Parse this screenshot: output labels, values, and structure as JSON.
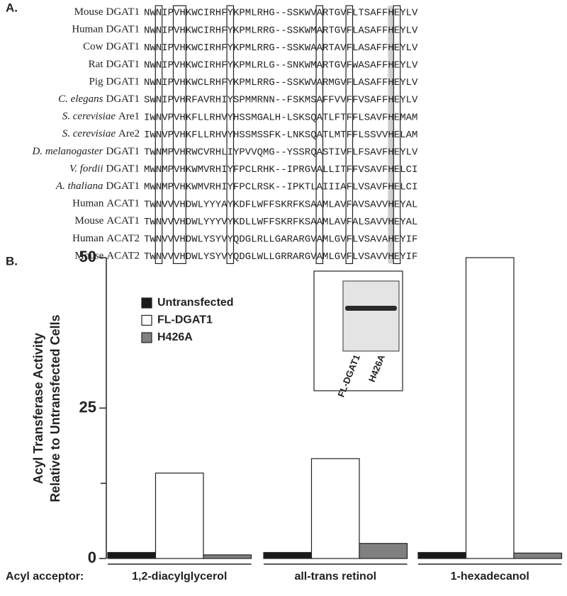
{
  "panel_labels": [
    "A.",
    "B."
  ],
  "panel_a": {
    "rows": [
      {
        "organism": "Mouse",
        "protein": "DGAT1",
        "italic": false,
        "sequence": "NWNIPVHKWCIRHFYKPMLRHG--SSKWVARTGVFLTSAFFHEYLV"
      },
      {
        "organism": "Human",
        "protein": "DGAT1",
        "italic": false,
        "sequence": "NWNIPVHKWCIRHFYKPMLRRG--SSKWMARTGVFLASAFFHEYLV"
      },
      {
        "organism": "Cow",
        "protein": "DGAT1",
        "italic": false,
        "sequence": "NWNIPVHKWCIRHFYKPMLRRG--SSKWAARTAVFLASAFFHEYLV"
      },
      {
        "organism": "Rat",
        "protein": "DGAT1",
        "italic": false,
        "sequence": "NWNIPVHKWCIRHFYKPMLRLG--SNKWMARTGVFWASAFFHEYLV"
      },
      {
        "organism": "Pig",
        "protein": "DGAT1",
        "italic": false,
        "sequence": "NWNIPVHKWCLRHFYKPMLRRG--SSKWVARMGVFLASAFFHEYLV"
      },
      {
        "organism": "C. elegans",
        "protein": "DGAT1",
        "italic": true,
        "sequence": "SWNIPVHRFAVRHIYSPMMRNN--FSKMSAFFVVFFVSAFFHEYLV"
      },
      {
        "organism": "S. cerevisiae",
        "protein": "Are1",
        "italic": true,
        "sequence": "IWNVPVHKFLLRHVYHSSMGALH-LSKSQATLFTFFLSAVFHEMAM"
      },
      {
        "organism": "S. cerevisiae",
        "protein": "Are2",
        "italic": true,
        "sequence": "IWNVPVHKFLLRHVYHSSMSSFK-LNKSQATLMTFFLSSVVHELAM"
      },
      {
        "organism": "D. melanogaster",
        "protein": "DGAT1",
        "italic": true,
        "sequence": "TWNMPVHRWCVRHLIYPVVQMG--YSSRQASTIVFLFSAVFHEYLV"
      },
      {
        "organism": "V. fordii",
        "protein": "DGAT1",
        "italic": true,
        "sequence": "MWNMPVHKWMVRHIYFPCLRHK--IPRGVALLITFFVSAVFHELCI"
      },
      {
        "organism": "A. thaliana",
        "protein": "DGAT1",
        "italic": true,
        "sequence": "MWNMPVHKWMVRHIYFPCLRSK--IPKTLAIIIAFLVSAVFHELCI"
      },
      {
        "organism": "Human",
        "protein": "ACAT1",
        "italic": false,
        "sequence": "TWNVVVHDWLYYYAYKDFLWFFSKRFKSAAMLAVFAVSAVVHEYAL"
      },
      {
        "organism": "Mouse",
        "protein": "ACAT1",
        "italic": false,
        "sequence": "TWNVVVHDWLYYYVYKDLLWFFSKRFKSAAMLAVFALSAVVHEYAL"
      },
      {
        "organism": "Human",
        "protein": "ACAT2",
        "italic": false,
        "sequence": "TWNVVVHDWLYSYVYQDGLRLLGARARGVAMLGVFLVSAVAHEYIF"
      },
      {
        "organism": "Mouse",
        "protein": "ACAT2",
        "italic": false,
        "sequence": "TWNVVVHDWLYSYVYQDGLWLLGRRARGVAMLGVFLVSAVVHEYIF"
      }
    ]
  },
  "chart_data": {
    "type": "bar",
    "y_label": [
      "Acyl Transferase Activity",
      "Relative to Untransfected Cells"
    ],
    "x_label": "Acyl acceptor:",
    "categories": [
      "1,2-diacylglycerol",
      "all-trans retinol",
      "1-hexadecanol"
    ],
    "series": [
      {
        "name": "Untransfected",
        "color": "#1a1a1a",
        "values": [
          1,
          1,
          1
        ]
      },
      {
        "name": "FL-DGAT1",
        "color": "#ffffff",
        "values": [
          14.2,
          16.6,
          50
        ]
      },
      {
        "name": "H426A",
        "color": "#808080",
        "values": [
          0.6,
          2.5,
          0.9
        ]
      }
    ],
    "ylim": [
      0,
      50
    ],
    "yticks": [
      0,
      25,
      50
    ],
    "minor_yticks": [
      12.5
    ],
    "inset_labels": [
      "FL-DGAT1",
      "H426A"
    ]
  }
}
